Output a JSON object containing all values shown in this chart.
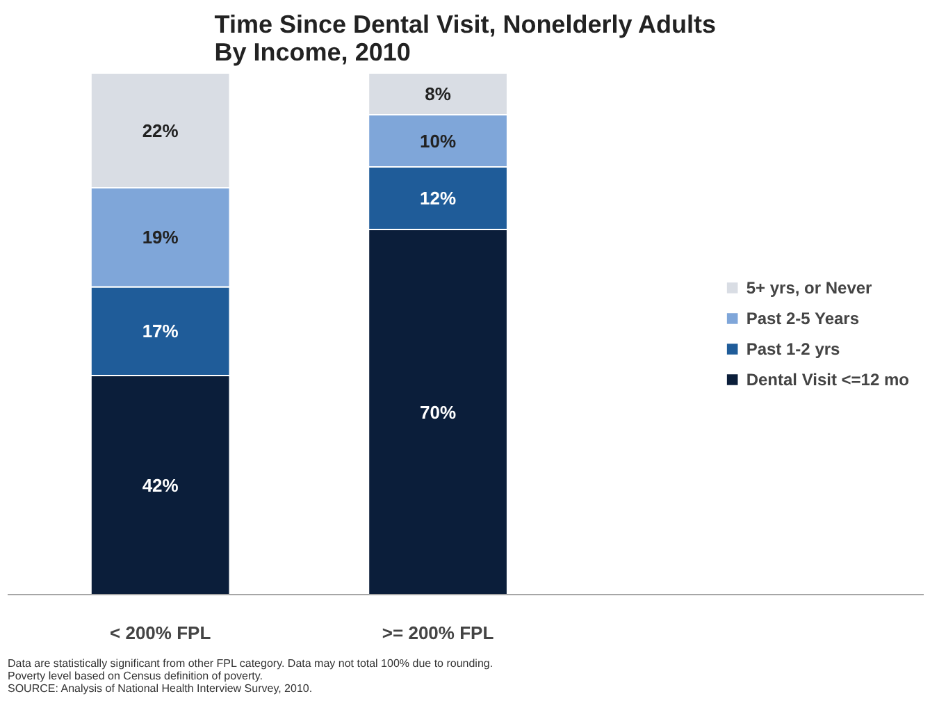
{
  "chart_data": {
    "type": "bar",
    "stacked": true,
    "legend": "right",
    "title": "Time Since Dental Visit, Nonelderly Adults\nBy Income, 2010",
    "categories": [
      "< 200% FPL",
      ">= 200% FPL"
    ],
    "series": [
      {
        "name": "Dental Visit <=12 mo",
        "color": "#0b1e3a",
        "values": [
          42,
          70
        ],
        "value_labels": [
          "42%",
          "70%"
        ]
      },
      {
        "name": "Past 1-2 yrs",
        "color": "#1f5c99",
        "values": [
          17,
          12
        ],
        "value_labels": [
          "17%",
          "12%"
        ]
      },
      {
        "name": "Past 2-5 Years",
        "color": "#7fa6d9",
        "values": [
          19,
          10
        ],
        "value_labels": [
          "19%",
          "10%"
        ]
      },
      {
        "name": "5+ yrs, or Never",
        "color": "#d9dde4",
        "values": [
          22,
          8
        ],
        "value_labels": [
          "22%",
          "8%"
        ]
      }
    ],
    "annotations": [
      "Data are statistically significant from other FPL category.  Data may not total 100% due to rounding.",
      "Poverty level based on Census definition of poverty.",
      "SOURCE: Analysis of National Health Interview Survey, 2010."
    ]
  }
}
